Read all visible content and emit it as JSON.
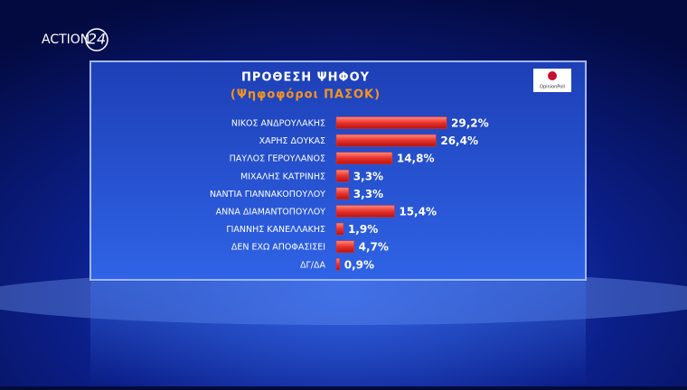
{
  "channel_logo": "ACTION",
  "channel_number": "24",
  "pollster": "OpinionPoll",
  "chart_data": {
    "type": "hbar",
    "title": "ΠΡΟΘΕΣΗ ΨΗΦΟΥ",
    "subtitle": "(Ψηφοφόροι ΠΑΣΟΚ)",
    "categories": [
      "ΝΙΚΟΣ ΑΝΔΡΟΥΛΑΚΗΣ",
      "ΧΑΡΗΣ ΔΟΥΚΑΣ",
      "ΠΑΥΛΟΣ ΓΕΡΟΥΛΑΝΟΣ",
      "ΜΙΧΑΛΗΣ ΚΑΤΡΙΝΗΣ",
      "ΝΑΝΤΙΑ ΓΙΑΝΝΑΚΟΠΟΥΛΟΥ",
      "ΑΝΝΑ ΔΙΑΜΑΝΤΟΠΟΥΛΟΥ",
      "ΓΙΑΝΝΗΣ ΚΑΝΕΛΛΑΚΗΣ",
      "ΔΕΝ ΕΧΩ ΑΠΟΦΑΣΙΣΕΙ",
      "ΔΓ/ΔΑ"
    ],
    "values": [
      29.2,
      26.4,
      14.8,
      3.3,
      3.3,
      15.4,
      1.9,
      4.7,
      0.9
    ],
    "value_labels": [
      "29,2%",
      "26,4%",
      "14,8%",
      "3,3%",
      "3,3%",
      "15,4%",
      "1,9%",
      "4,7%",
      "0,9%"
    ],
    "color": "#e8322c"
  }
}
